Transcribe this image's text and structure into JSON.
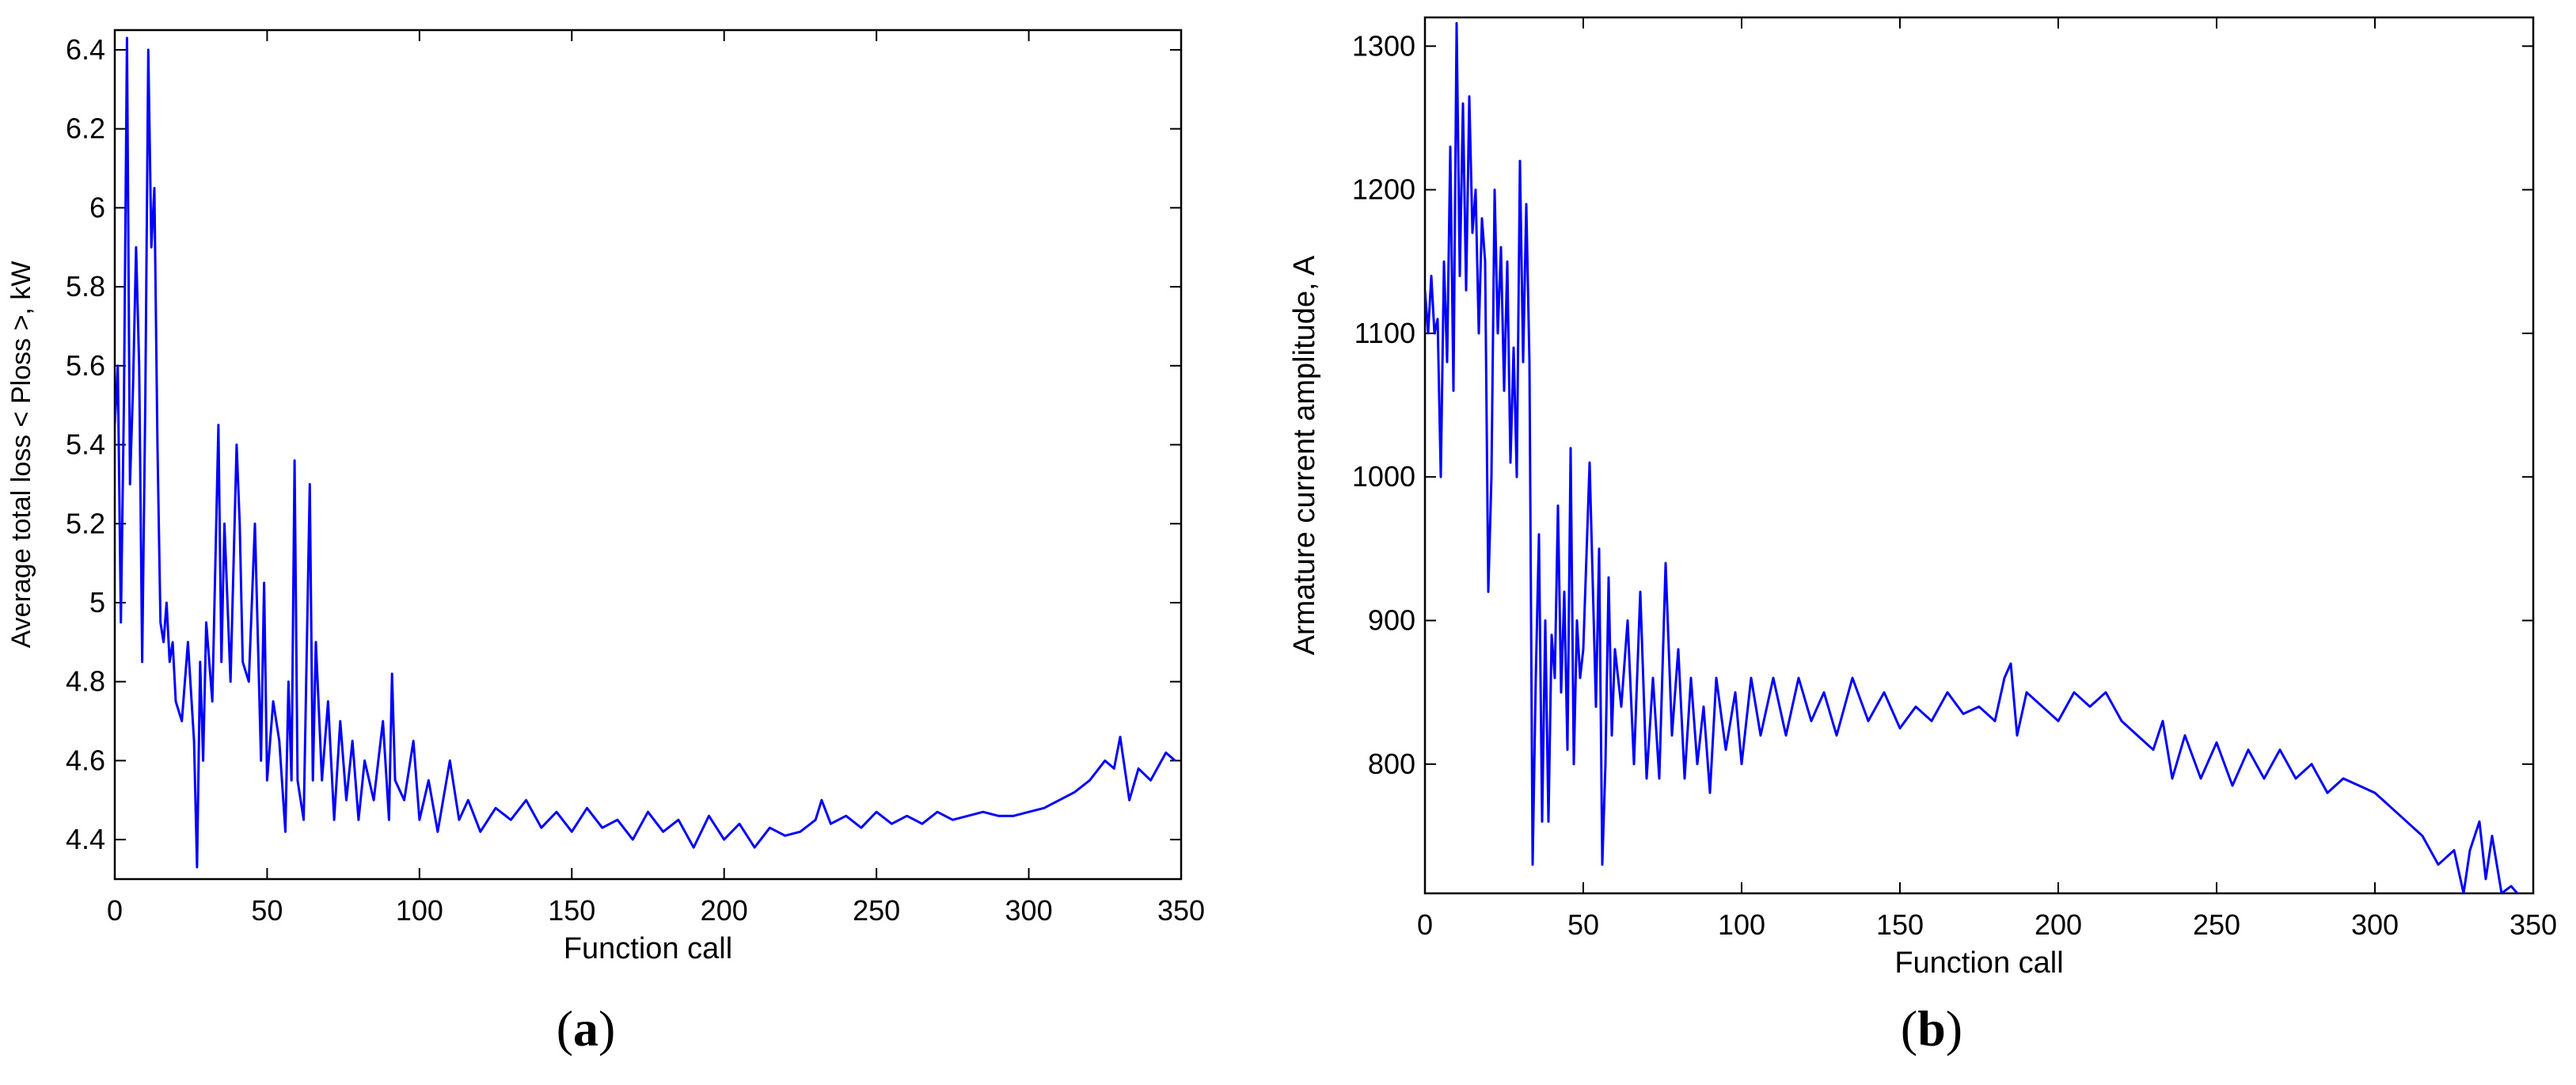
{
  "panels": [
    {
      "letter": "a"
    },
    {
      "letter": "b"
    }
  ],
  "chart_data": [
    {
      "type": "line",
      "xlabel": "Function call",
      "ylabel": "Average total loss < Ploss >, kW",
      "xlim": [
        0,
        350
      ],
      "ylim": [
        4.3,
        6.45
      ],
      "xticks": [
        0,
        50,
        100,
        150,
        200,
        250,
        300,
        350
      ],
      "yticks": [
        4.4,
        4.6,
        4.8,
        5.0,
        5.2,
        5.4,
        5.6,
        5.8,
        6.0,
        6.2,
        6.4
      ],
      "ytick_labels": [
        "4.4",
        "4.6",
        "4.8",
        "5",
        "5.2",
        "5.4",
        "5.6",
        "5.8",
        "6",
        "6.2",
        "6.4"
      ],
      "grid": false,
      "line_color": "#0000ff",
      "series": [
        {
          "x": [
            0,
            1,
            2,
            3,
            4,
            5,
            6,
            7,
            8,
            9,
            10,
            11,
            12,
            13,
            14,
            15,
            16,
            17,
            18,
            19,
            20,
            22,
            24,
            26,
            27,
            28,
            29,
            30,
            32,
            34,
            35,
            36,
            38,
            40,
            41,
            42,
            44,
            46,
            48,
            49,
            50,
            52,
            54,
            56,
            57,
            58,
            59,
            60,
            62,
            64,
            65,
            66,
            68,
            70,
            72,
            74,
            76,
            78,
            80,
            82,
            85,
            88,
            90,
            91,
            92,
            95,
            98,
            100,
            103,
            106,
            110,
            113,
            116,
            120,
            125,
            130,
            135,
            140,
            145,
            150,
            155,
            160,
            165,
            170,
            175,
            180,
            185,
            190,
            195,
            200,
            205,
            210,
            215,
            220,
            225,
            230,
            232,
            235,
            240,
            245,
            250,
            255,
            260,
            265,
            270,
            275,
            280,
            285,
            290,
            295,
            300,
            305,
            310,
            315,
            320,
            325,
            328,
            330,
            333,
            336,
            340,
            345,
            348
          ],
          "y": [
            5.45,
            5.6,
            4.95,
            5.5,
            6.43,
            5.3,
            5.55,
            5.9,
            5.6,
            4.85,
            5.5,
            6.4,
            5.9,
            6.05,
            5.4,
            4.95,
            4.9,
            5.0,
            4.85,
            4.9,
            4.75,
            4.7,
            4.9,
            4.65,
            4.33,
            4.85,
            4.6,
            4.95,
            4.75,
            5.45,
            4.85,
            5.2,
            4.8,
            5.4,
            5.2,
            4.85,
            4.8,
            5.2,
            4.6,
            5.05,
            4.55,
            4.75,
            4.65,
            4.42,
            4.8,
            4.55,
            5.36,
            4.55,
            4.45,
            5.3,
            4.55,
            4.9,
            4.55,
            4.75,
            4.45,
            4.7,
            4.5,
            4.65,
            4.45,
            4.6,
            4.5,
            4.7,
            4.45,
            4.82,
            4.55,
            4.5,
            4.65,
            4.45,
            4.55,
            4.42,
            4.6,
            4.45,
            4.5,
            4.42,
            4.48,
            4.45,
            4.5,
            4.43,
            4.47,
            4.42,
            4.48,
            4.43,
            4.45,
            4.4,
            4.47,
            4.42,
            4.45,
            4.38,
            4.46,
            4.4,
            4.44,
            4.38,
            4.43,
            4.41,
            4.42,
            4.45,
            4.5,
            4.44,
            4.46,
            4.43,
            4.47,
            4.44,
            4.46,
            4.44,
            4.47,
            4.45,
            4.46,
            4.47,
            4.46,
            4.46,
            4.47,
            4.48,
            4.5,
            4.52,
            4.55,
            4.6,
            4.58,
            4.66,
            4.5,
            4.58,
            4.55,
            4.62,
            4.6
          ]
        }
      ]
    },
    {
      "type": "line",
      "xlabel": "Function call",
      "ylabel": "Armature current amplitude, A",
      "xlim": [
        0,
        350
      ],
      "ylim": [
        710,
        1320
      ],
      "xticks": [
        0,
        50,
        100,
        150,
        200,
        250,
        300,
        350
      ],
      "yticks": [
        800,
        900,
        1000,
        1100,
        1200,
        1300
      ],
      "ytick_labels": [
        "800",
        "900",
        "1000",
        "1100",
        "1200",
        "1300"
      ],
      "grid": false,
      "line_color": "#0000ff",
      "series": [
        {
          "x": [
            0,
            1,
            2,
            3,
            4,
            5,
            6,
            7,
            8,
            9,
            10,
            11,
            12,
            13,
            14,
            15,
            16,
            17,
            18,
            19,
            20,
            21,
            22,
            23,
            24,
            25,
            26,
            27,
            28,
            29,
            30,
            31,
            32,
            33,
            34,
            35,
            36,
            37,
            38,
            39,
            40,
            41,
            42,
            43,
            44,
            45,
            46,
            47,
            48,
            49,
            50,
            52,
            54,
            55,
            56,
            57,
            58,
            59,
            60,
            62,
            64,
            66,
            68,
            70,
            72,
            74,
            76,
            78,
            80,
            82,
            84,
            86,
            88,
            90,
            92,
            95,
            98,
            100,
            103,
            106,
            110,
            114,
            118,
            122,
            126,
            130,
            135,
            140,
            145,
            150,
            155,
            160,
            165,
            170,
            175,
            180,
            183,
            185,
            187,
            190,
            195,
            200,
            205,
            210,
            215,
            220,
            225,
            230,
            233,
            236,
            240,
            245,
            250,
            255,
            260,
            265,
            270,
            275,
            280,
            285,
            290,
            295,
            300,
            305,
            310,
            315,
            320,
            325,
            328,
            330,
            333,
            335,
            337,
            340,
            343,
            345
          ],
          "y": [
            1130,
            1100,
            1140,
            1100,
            1110,
            1000,
            1150,
            1080,
            1230,
            1060,
            1316,
            1140,
            1260,
            1130,
            1265,
            1170,
            1200,
            1100,
            1180,
            1150,
            920,
            1000,
            1200,
            1100,
            1160,
            1060,
            1150,
            1010,
            1090,
            1000,
            1220,
            1080,
            1190,
            1080,
            730,
            860,
            960,
            760,
            900,
            760,
            890,
            860,
            980,
            850,
            920,
            810,
            1020,
            800,
            900,
            860,
            880,
            1010,
            840,
            950,
            730,
            800,
            930,
            820,
            880,
            840,
            900,
            800,
            920,
            790,
            860,
            790,
            940,
            820,
            880,
            790,
            860,
            800,
            840,
            780,
            860,
            810,
            850,
            800,
            860,
            820,
            860,
            820,
            860,
            830,
            850,
            820,
            860,
            830,
            850,
            825,
            840,
            830,
            850,
            835,
            840,
            830,
            860,
            870,
            820,
            850,
            840,
            830,
            850,
            840,
            850,
            830,
            820,
            810,
            830,
            790,
            820,
            790,
            815,
            785,
            810,
            790,
            810,
            790,
            800,
            780,
            790,
            785,
            780,
            770,
            760,
            750,
            730,
            740,
            710,
            740,
            760,
            720,
            750,
            710,
            715,
            710
          ]
        }
      ]
    }
  ]
}
